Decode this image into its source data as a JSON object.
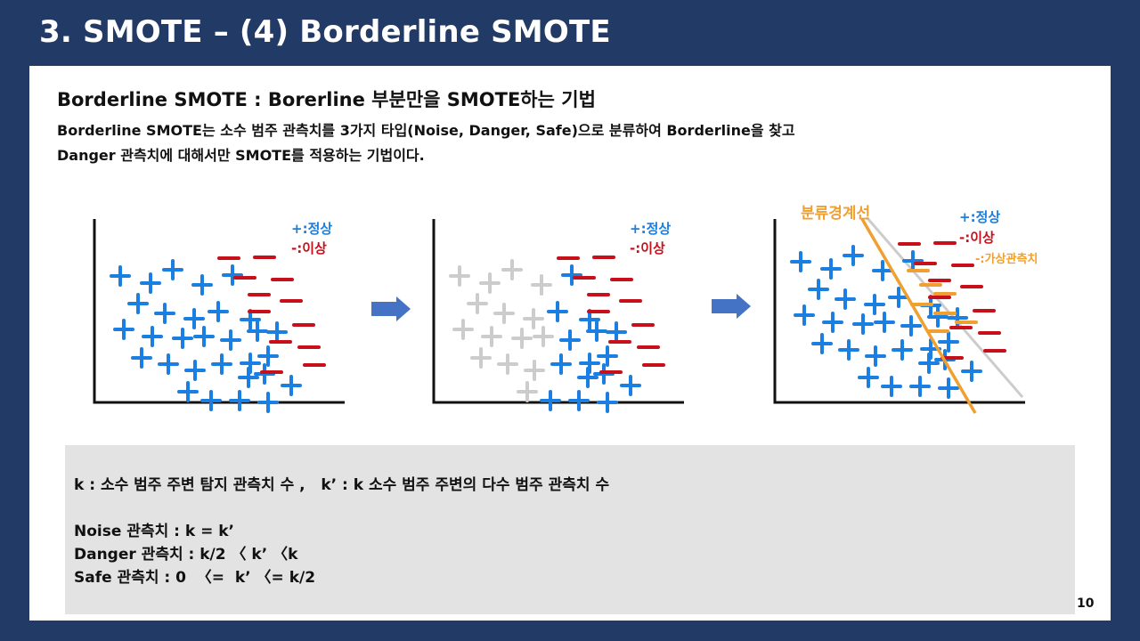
{
  "slide": {
    "title": "3. SMOTE – (4) Borderline SMOTE",
    "heading": "Borderline SMOTE : Borerline 부분만을 SMOTE하는 기법",
    "description": [
      "Borderline SMOTE는 소수 범주 관측치를 3가지 타입(Noise, Danger, Safe)으로 분류하여 Borderline을 찾고",
      "Danger 관측치에 대해서만 SMOTE를 적용하는 기법이다."
    ],
    "page_number": "10"
  },
  "figure": {
    "legend_plus": "+:정상",
    "legend_minus": "-:이상",
    "legend_synthetic": "-:가상관측치",
    "boundary_label": "분류경계선",
    "colors": {
      "plus": "#1a7fe0",
      "minus": "#c8101a",
      "faded": "#cccccc",
      "synthetic": "#f0a030",
      "arrow": "#4472c4"
    }
  },
  "info": {
    "line1": "k : 소수 범주 주변 탐지 관측치 수 ,   k’ : k 소수 범주 주변의 다수 범주 관측치 수",
    "line2": "Noise 관측치 : k = k’",
    "line3": "Danger 관측치 : k/2 〈 k’ 〈k",
    "line4": "Safe 관측치 : 0  〈=  k’ 〈= k/2"
  }
}
